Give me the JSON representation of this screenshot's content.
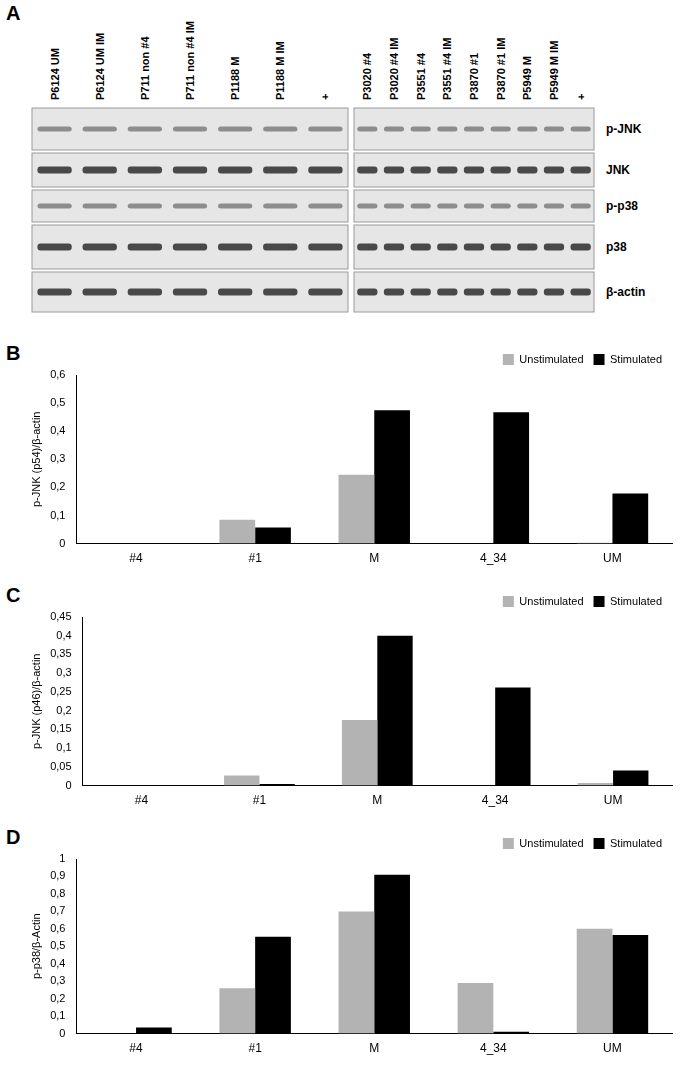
{
  "blot": {
    "panel_label": "A",
    "rows": [
      "p-JNK",
      "JNK",
      "p-p38",
      "p38",
      "β-actin"
    ],
    "panels": [
      {
        "lanes": [
          "P6124 UM",
          "P6124 UM IM",
          "P711 non #4",
          "P711 non #4 IM",
          "P1188 M",
          "P1188 M IM",
          "+"
        ]
      },
      {
        "lanes": [
          "P3020 #4",
          "P3020 #4 IM",
          "P3551 #4",
          "P3551 #4 IM",
          "P3870 #1",
          "P3870 #1 IM",
          "P5949 M",
          "P5949 M IM",
          "+"
        ]
      }
    ]
  },
  "chart_data": [
    {
      "panel_label": "B",
      "type": "bar",
      "y_label": "p-JNK (p54)/β-actin",
      "categories": [
        "#4",
        "#1",
        "M",
        "4_34",
        "UM"
      ],
      "series": [
        {
          "name": "Unstimulated",
          "color": "#b3b3b3",
          "values": [
            0,
            0.085,
            0.245,
            0,
            0.003
          ]
        },
        {
          "name": "Stimulated",
          "color": "#000000",
          "values": [
            0,
            0.057,
            0.475,
            0.467,
            0.178
          ]
        }
      ],
      "ylim": [
        0,
        0.6
      ],
      "yticks": [
        0,
        {
          "value": 0.1,
          "label": "0,1"
        },
        {
          "value": 0.2,
          "label": "0,2"
        },
        {
          "value": 0.3,
          "label": "0,3"
        },
        {
          "value": 0.4,
          "label": "0,4"
        },
        {
          "value": 0.5,
          "label": "0,5"
        },
        {
          "value": 0.6,
          "label": "0,6"
        }
      ],
      "grid": false,
      "legend": "upper right"
    },
    {
      "panel_label": "C",
      "type": "bar",
      "y_label": "p-JNK (p46)/β-actin",
      "categories": [
        "#4",
        "#1",
        "M",
        "4_34",
        "UM"
      ],
      "series": [
        {
          "name": "Unstimulated",
          "color": "#b3b3b3",
          "values": [
            0,
            0.027,
            0.175,
            0,
            0.007
          ]
        },
        {
          "name": "Stimulated",
          "color": "#000000",
          "values": [
            0,
            0.004,
            0.4,
            0.262,
            0.04
          ]
        }
      ],
      "ylim": [
        0,
        0.45
      ],
      "yticks": [
        0,
        {
          "value": 0.05,
          "label": "0,05"
        },
        {
          "value": 0.1,
          "label": "0,1"
        },
        {
          "value": 0.15,
          "label": "0,15"
        },
        {
          "value": 0.2,
          "label": "0,2"
        },
        {
          "value": 0.25,
          "label": "0,25"
        },
        {
          "value": 0.3,
          "label": "0,3"
        },
        {
          "value": 0.35,
          "label": "0,35"
        },
        {
          "value": 0.4,
          "label": "0,4"
        },
        {
          "value": 0.45,
          "label": "0,45"
        }
      ],
      "grid": false,
      "legend": "upper right"
    },
    {
      "panel_label": "D",
      "type": "bar",
      "y_label": "p-p38/β-Actin",
      "categories": [
        "#4",
        "#1",
        "M",
        "4_34",
        "UM"
      ],
      "series": [
        {
          "name": "Unstimulated",
          "color": "#b3b3b3",
          "values": [
            0,
            0.26,
            0.7,
            0.29,
            0.6
          ]
        },
        {
          "name": "Stimulated",
          "color": "#000000",
          "values": [
            0.035,
            0.555,
            0.91,
            0.01,
            0.565
          ]
        }
      ],
      "ylim": [
        0,
        1
      ],
      "yticks": [
        0,
        {
          "value": 0.1,
          "label": "0,1"
        },
        {
          "value": 0.2,
          "label": "0,2"
        },
        {
          "value": 0.3,
          "label": "0,3"
        },
        {
          "value": 0.4,
          "label": "0,4"
        },
        {
          "value": 0.5,
          "label": "0,5"
        },
        {
          "value": 0.6,
          "label": "0,6"
        },
        {
          "value": 0.7,
          "label": "0,7"
        },
        {
          "value": 0.8,
          "label": "0,8"
        },
        {
          "value": 0.9,
          "label": "0,9"
        },
        1
      ],
      "grid": false,
      "legend": "upper right"
    }
  ]
}
